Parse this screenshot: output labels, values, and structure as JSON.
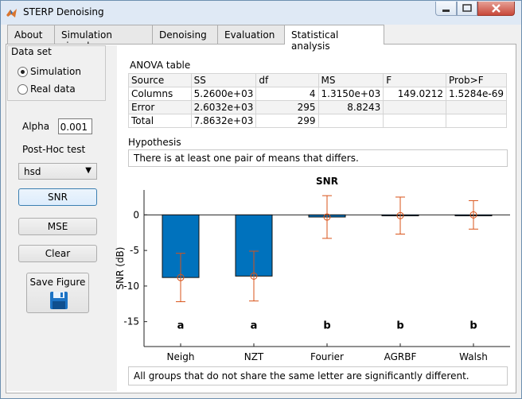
{
  "window": {
    "title": "STERP Denoising"
  },
  "tabs": [
    {
      "label": "About"
    },
    {
      "label": "Simulation signals"
    },
    {
      "label": "Denoising"
    },
    {
      "label": "Evaluation"
    },
    {
      "label": "Statistical analysis"
    }
  ],
  "active_tab": "Statistical analysis",
  "dataset": {
    "title": "Data set",
    "options": [
      "Simulation",
      "Real data"
    ],
    "selected": "Simulation"
  },
  "alpha": {
    "label": "Alpha",
    "value": "0.001"
  },
  "posthoc": {
    "label": "Post-Hoc test",
    "selected": "hsd"
  },
  "buttons": {
    "snr": "SNR",
    "mse": "MSE",
    "clear": "Clear",
    "save_figure": "Save Figure"
  },
  "anova": {
    "title": "ANOVA table",
    "headers": [
      "Source",
      "SS",
      "df",
      "MS",
      "F",
      "Prob>F"
    ],
    "rows": [
      [
        "Columns",
        "5.2600e+03",
        "4",
        "1.3150e+03",
        "149.0212",
        "1.5284e-69"
      ],
      [
        "Error",
        "2.6032e+03",
        "295",
        "8.8243",
        "",
        ""
      ],
      [
        "Total",
        "7.8632e+03",
        "299",
        "",
        "",
        ""
      ]
    ]
  },
  "hypothesis": {
    "title": "Hypothesis",
    "text": "There is at least one pair of means that differs."
  },
  "footer_note": "All groups that do not share the same letter are significantly different.",
  "colors": {
    "bar": "#0072bd",
    "errorbar": "#d95319"
  },
  "chart_data": {
    "type": "bar",
    "title": "SNR",
    "xlabel": "",
    "ylabel": "SNR (dB)",
    "categories": [
      "Neigh",
      "NZT",
      "Fourier",
      "AGRBF",
      "Walsh"
    ],
    "values": [
      -8.8,
      -8.6,
      -0.3,
      -0.1,
      0.0
    ],
    "error": [
      3.4,
      3.5,
      3.0,
      2.6,
      2.0
    ],
    "group_letters": [
      "a",
      "a",
      "b",
      "b",
      "b"
    ],
    "ylim": [
      -18.5,
      3.5
    ],
    "yticks": [
      0,
      -5,
      -10,
      -15
    ],
    "ytick_labels": [
      "0",
      "-5",
      "-10",
      "-15"
    ],
    "grid": false
  }
}
